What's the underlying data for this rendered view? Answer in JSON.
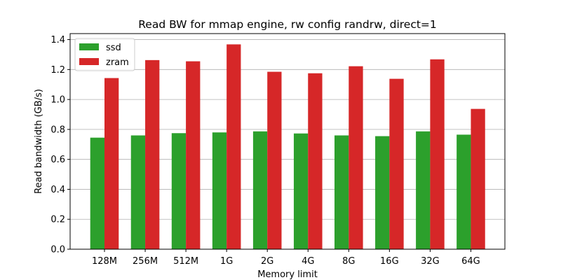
{
  "chart_data": {
    "type": "bar",
    "title": "Read BW for mmap engine, rw config randrw, direct=1",
    "xlabel": "Memory limit",
    "ylabel": "Read bandwidth (GB/s)",
    "categories": [
      "128M",
      "256M",
      "512M",
      "1G",
      "2G",
      "4G",
      "8G",
      "16G",
      "32G",
      "64G"
    ],
    "series": [
      {
        "name": "ssd",
        "color": "#2ca02c",
        "values": [
          0.745,
          0.76,
          0.775,
          0.78,
          0.787,
          0.773,
          0.76,
          0.755,
          0.787,
          0.765
        ]
      },
      {
        "name": "zram",
        "color": "#d62728",
        "values": [
          1.143,
          1.263,
          1.255,
          1.368,
          1.185,
          1.175,
          1.222,
          1.138,
          1.268,
          0.937
        ]
      }
    ],
    "ylim": [
      0,
      1.44
    ],
    "yticks": [
      "0.0",
      "0.2",
      "0.4",
      "0.6",
      "0.8",
      "1.0",
      "1.2",
      "1.4"
    ],
    "grid": "horizontal",
    "legend_position": "top-left"
  }
}
